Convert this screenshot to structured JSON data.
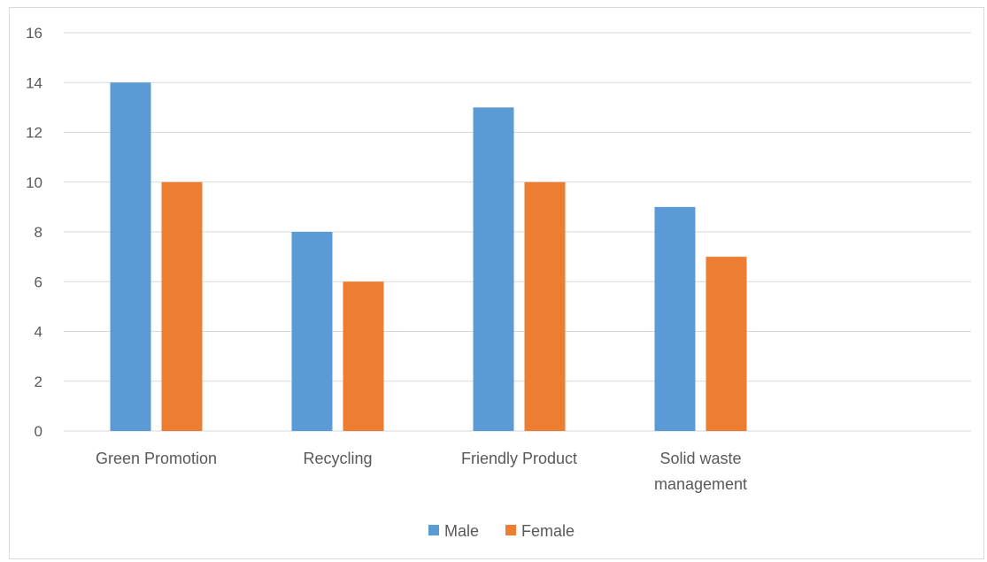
{
  "chart_data": {
    "type": "bar",
    "categories": [
      "Green Promotion",
      "Recycling",
      "Friendly Product",
      "Solid waste management"
    ],
    "category_label_lines": [
      [
        "Green Promotion"
      ],
      [
        "Recycling"
      ],
      [
        "Friendly Product"
      ],
      [
        "Solid waste",
        "management"
      ]
    ],
    "series": [
      {
        "name": "Male",
        "values": [
          14,
          8,
          13,
          9
        ],
        "color": "#5B9BD5"
      },
      {
        "name": "Female",
        "values": [
          10,
          6,
          10,
          7
        ],
        "color": "#ED7D31"
      }
    ],
    "yticks": [
      0,
      2,
      4,
      6,
      8,
      10,
      12,
      14,
      16
    ],
    "ylim": [
      0,
      16
    ],
    "title": "",
    "xlabel": "",
    "ylabel": "",
    "grid": true,
    "legend_position": "bottom",
    "gridline_color": "#d9d9d9",
    "text_color": "#595959"
  }
}
